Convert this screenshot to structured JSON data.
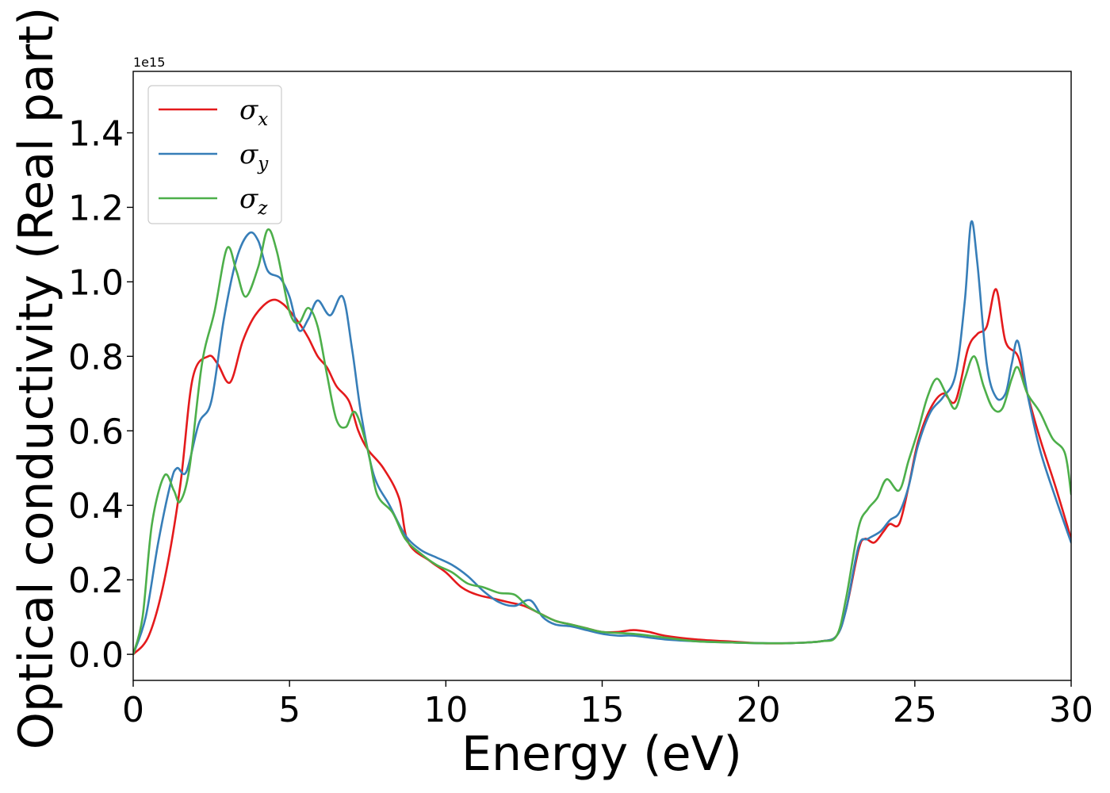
{
  "chart_data": {
    "type": "line",
    "xlabel": "Energy (eV)",
    "ylabel": "Optical conductivity (Real part)",
    "y_offset_label": "1e15",
    "xlim": [
      0,
      30
    ],
    "ylim": [
      -0.07,
      1.565
    ],
    "y_scale": 1000000000000000.0,
    "xticks": [
      {
        "value": 0,
        "label": "0"
      },
      {
        "value": 5,
        "label": "5"
      },
      {
        "value": 10,
        "label": "10"
      },
      {
        "value": 15,
        "label": "15"
      },
      {
        "value": 20,
        "label": "20"
      },
      {
        "value": 25,
        "label": "25"
      },
      {
        "value": 30,
        "label": "30"
      }
    ],
    "yticks": [
      {
        "value": 0.0,
        "label": "0.0"
      },
      {
        "value": 0.2,
        "label": "0.2"
      },
      {
        "value": 0.4,
        "label": "0.4"
      },
      {
        "value": 0.6,
        "label": "0.6"
      },
      {
        "value": 0.8,
        "label": "0.8"
      },
      {
        "value": 1.0,
        "label": "1.0"
      },
      {
        "value": 1.2,
        "label": "1.2"
      },
      {
        "value": 1.4,
        "label": "1.4"
      }
    ],
    "grid": false,
    "legend_position": "top-left",
    "series": [
      {
        "name": "σ",
        "subscript": "x",
        "color": "#e41a1c",
        "points": [
          [
            0,
            0
          ],
          [
            0.5,
            0.05
          ],
          [
            1,
            0.2
          ],
          [
            1.5,
            0.45
          ],
          [
            1.9,
            0.74
          ],
          [
            2.4,
            0.8
          ],
          [
            2.7,
            0.78
          ],
          [
            3.1,
            0.73
          ],
          [
            3.5,
            0.84
          ],
          [
            3.9,
            0.91
          ],
          [
            4.4,
            0.95
          ],
          [
            4.8,
            0.94
          ],
          [
            5.3,
            0.89
          ],
          [
            5.6,
            0.85
          ],
          [
            5.9,
            0.8
          ],
          [
            6.2,
            0.77
          ],
          [
            6.5,
            0.72
          ],
          [
            6.9,
            0.68
          ],
          [
            7.2,
            0.6
          ],
          [
            7.5,
            0.55
          ],
          [
            8,
            0.5
          ],
          [
            8.5,
            0.42
          ],
          [
            8.8,
            0.3
          ],
          [
            9.5,
            0.25
          ],
          [
            10,
            0.22
          ],
          [
            10.5,
            0.18
          ],
          [
            11,
            0.16
          ],
          [
            11.5,
            0.15
          ],
          [
            12,
            0.14
          ],
          [
            12.5,
            0.13
          ],
          [
            13,
            0.11
          ],
          [
            13.5,
            0.09
          ],
          [
            14,
            0.08
          ],
          [
            14.5,
            0.07
          ],
          [
            15,
            0.06
          ],
          [
            15.5,
            0.06
          ],
          [
            16,
            0.065
          ],
          [
            16.5,
            0.06
          ],
          [
            17,
            0.05
          ],
          [
            18,
            0.04
          ],
          [
            19,
            0.035
          ],
          [
            20,
            0.03
          ],
          [
            21,
            0.03
          ],
          [
            22,
            0.035
          ],
          [
            22.5,
            0.05
          ],
          [
            22.8,
            0.12
          ],
          [
            23.2,
            0.28
          ],
          [
            23.4,
            0.31
          ],
          [
            23.7,
            0.3
          ],
          [
            24,
            0.33
          ],
          [
            24.2,
            0.35
          ],
          [
            24.5,
            0.35
          ],
          [
            24.8,
            0.45
          ],
          [
            25.1,
            0.57
          ],
          [
            25.5,
            0.66
          ],
          [
            25.9,
            0.7
          ],
          [
            26.3,
            0.68
          ],
          [
            26.7,
            0.82
          ],
          [
            27,
            0.86
          ],
          [
            27.3,
            0.88
          ],
          [
            27.6,
            0.98
          ],
          [
            27.9,
            0.84
          ],
          [
            28.3,
            0.8
          ],
          [
            28.6,
            0.7
          ],
          [
            29,
            0.58
          ],
          [
            29.5,
            0.45
          ],
          [
            30,
            0.31
          ]
        ]
      },
      {
        "name": "σ",
        "subscript": "y",
        "color": "#377eb8",
        "points": [
          [
            0,
            0
          ],
          [
            0.4,
            0.1
          ],
          [
            0.8,
            0.3
          ],
          [
            1.2,
            0.46
          ],
          [
            1.4,
            0.5
          ],
          [
            1.7,
            0.49
          ],
          [
            2.1,
            0.62
          ],
          [
            2.5,
            0.68
          ],
          [
            2.9,
            0.9
          ],
          [
            3.3,
            1.06
          ],
          [
            3.7,
            1.13
          ],
          [
            4,
            1.11
          ],
          [
            4.3,
            1.03
          ],
          [
            4.7,
            1.01
          ],
          [
            5,
            0.96
          ],
          [
            5.3,
            0.87
          ],
          [
            5.6,
            0.9
          ],
          [
            5.9,
            0.95
          ],
          [
            6.3,
            0.91
          ],
          [
            6.7,
            0.96
          ],
          [
            7,
            0.82
          ],
          [
            7.3,
            0.64
          ],
          [
            7.7,
            0.48
          ],
          [
            8.2,
            0.4
          ],
          [
            8.7,
            0.32
          ],
          [
            9.2,
            0.28
          ],
          [
            9.7,
            0.26
          ],
          [
            10.2,
            0.24
          ],
          [
            10.7,
            0.21
          ],
          [
            11.2,
            0.17
          ],
          [
            11.7,
            0.14
          ],
          [
            12.2,
            0.13
          ],
          [
            12.7,
            0.145
          ],
          [
            13.1,
            0.1
          ],
          [
            13.5,
            0.08
          ],
          [
            14,
            0.075
          ],
          [
            14.5,
            0.065
          ],
          [
            15,
            0.055
          ],
          [
            15.5,
            0.05
          ],
          [
            16,
            0.05
          ],
          [
            17,
            0.04
          ],
          [
            18,
            0.035
          ],
          [
            19,
            0.032
          ],
          [
            20,
            0.03
          ],
          [
            21,
            0.03
          ],
          [
            22,
            0.035
          ],
          [
            22.5,
            0.05
          ],
          [
            22.8,
            0.12
          ],
          [
            23.2,
            0.29
          ],
          [
            23.5,
            0.31
          ],
          [
            23.9,
            0.33
          ],
          [
            24.2,
            0.36
          ],
          [
            24.5,
            0.38
          ],
          [
            24.8,
            0.45
          ],
          [
            25.1,
            0.56
          ],
          [
            25.5,
            0.65
          ],
          [
            25.9,
            0.69
          ],
          [
            26.3,
            0.75
          ],
          [
            26.6,
            0.95
          ],
          [
            26.8,
            1.16
          ],
          [
            27,
            1.05
          ],
          [
            27.3,
            0.78
          ],
          [
            27.6,
            0.69
          ],
          [
            27.9,
            0.7
          ],
          [
            28.1,
            0.78
          ],
          [
            28.3,
            0.84
          ],
          [
            28.6,
            0.7
          ],
          [
            29,
            0.55
          ],
          [
            29.5,
            0.42
          ],
          [
            30,
            0.3
          ]
        ]
      },
      {
        "name": "σ",
        "subscript": "z",
        "color": "#4daf4a",
        "points": [
          [
            0,
            0
          ],
          [
            0.3,
            0.1
          ],
          [
            0.6,
            0.35
          ],
          [
            1,
            0.48
          ],
          [
            1.3,
            0.44
          ],
          [
            1.5,
            0.41
          ],
          [
            1.8,
            0.5
          ],
          [
            2.2,
            0.78
          ],
          [
            2.6,
            0.92
          ],
          [
            3,
            1.09
          ],
          [
            3.3,
            1.03
          ],
          [
            3.6,
            0.96
          ],
          [
            4,
            1.04
          ],
          [
            4.3,
            1.14
          ],
          [
            4.6,
            1.08
          ],
          [
            5,
            0.92
          ],
          [
            5.3,
            0.89
          ],
          [
            5.6,
            0.93
          ],
          [
            5.9,
            0.88
          ],
          [
            6.2,
            0.75
          ],
          [
            6.5,
            0.63
          ],
          [
            6.8,
            0.61
          ],
          [
            7.1,
            0.65
          ],
          [
            7.5,
            0.55
          ],
          [
            7.8,
            0.43
          ],
          [
            8.3,
            0.38
          ],
          [
            8.7,
            0.31
          ],
          [
            9.2,
            0.27
          ],
          [
            9.7,
            0.24
          ],
          [
            10.2,
            0.22
          ],
          [
            10.7,
            0.19
          ],
          [
            11.2,
            0.18
          ],
          [
            11.7,
            0.165
          ],
          [
            12.2,
            0.16
          ],
          [
            12.6,
            0.13
          ],
          [
            13,
            0.11
          ],
          [
            13.5,
            0.09
          ],
          [
            14,
            0.08
          ],
          [
            14.5,
            0.07
          ],
          [
            15,
            0.06
          ],
          [
            16,
            0.055
          ],
          [
            17,
            0.045
          ],
          [
            18,
            0.035
          ],
          [
            19,
            0.032
          ],
          [
            20,
            0.03
          ],
          [
            21,
            0.03
          ],
          [
            22,
            0.035
          ],
          [
            22.5,
            0.05
          ],
          [
            22.8,
            0.15
          ],
          [
            23.2,
            0.34
          ],
          [
            23.5,
            0.39
          ],
          [
            23.8,
            0.42
          ],
          [
            24.1,
            0.47
          ],
          [
            24.5,
            0.44
          ],
          [
            24.8,
            0.52
          ],
          [
            25.1,
            0.6
          ],
          [
            25.4,
            0.69
          ],
          [
            25.7,
            0.74
          ],
          [
            26,
            0.7
          ],
          [
            26.3,
            0.66
          ],
          [
            26.6,
            0.74
          ],
          [
            26.9,
            0.8
          ],
          [
            27.2,
            0.72
          ],
          [
            27.5,
            0.66
          ],
          [
            27.8,
            0.66
          ],
          [
            28.1,
            0.74
          ],
          [
            28.3,
            0.77
          ],
          [
            28.6,
            0.7
          ],
          [
            29,
            0.65
          ],
          [
            29.4,
            0.58
          ],
          [
            29.8,
            0.54
          ],
          [
            30,
            0.43
          ]
        ]
      }
    ]
  }
}
